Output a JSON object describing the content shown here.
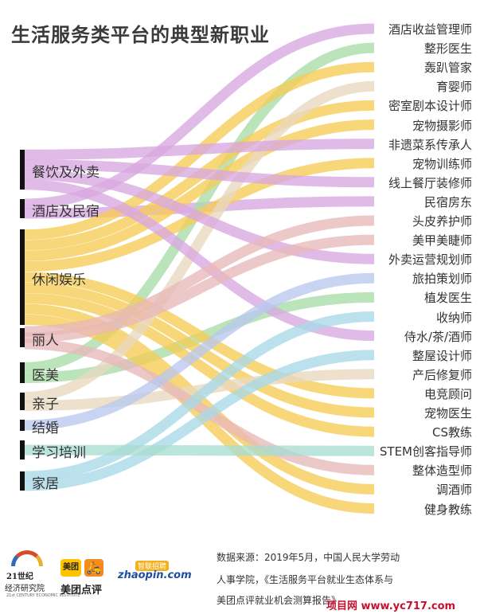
{
  "title": "生活服务类平台的典型新职业",
  "sources": [
    {
      "label": "餐饮及外卖"
    },
    {
      "label": "酒店及民宿"
    },
    {
      "label": "休闲娱乐"
    },
    {
      "label": "丽人"
    },
    {
      "label": "医美"
    },
    {
      "label": "亲子"
    },
    {
      "label": "结婚"
    },
    {
      "label": "学习培训"
    },
    {
      "label": "家居"
    }
  ],
  "targets": [
    {
      "label": "酒店收益管理师"
    },
    {
      "label": "整形医生"
    },
    {
      "label": "轰趴管家"
    },
    {
      "label": "育婴师"
    },
    {
      "label": "密室剧本设计师"
    },
    {
      "label": "宠物摄影师"
    },
    {
      "label": "非遗菜系传承人"
    },
    {
      "label": "宠物训练师"
    },
    {
      "label": "线上餐厅装修师"
    },
    {
      "label": "民宿房东"
    },
    {
      "label": "头皮养护师"
    },
    {
      "label": "美甲美睫师"
    },
    {
      "label": "外卖运营规划师"
    },
    {
      "label": "旅拍策划师"
    },
    {
      "label": "植发医生"
    },
    {
      "label": "收纳师"
    },
    {
      "label": "侍水/茶/酒师"
    },
    {
      "label": "整屋设计师"
    },
    {
      "label": "产后修复师"
    },
    {
      "label": "电竞顾问"
    },
    {
      "label": "宠物医生"
    },
    {
      "label": "CS教练"
    },
    {
      "label": "STEM创客指导师"
    },
    {
      "label": "整体造型师"
    },
    {
      "label": "调酒师"
    },
    {
      "label": "健身教练"
    }
  ],
  "links": [
    {
      "source": "酒店及民宿",
      "target": "酒店收益管理师",
      "color": "#d9a8e0"
    },
    {
      "source": "医美",
      "target": "整形医生",
      "color": "#a8dca8"
    },
    {
      "source": "休闲娱乐",
      "target": "轰趴管家",
      "color": "#f6cc55"
    },
    {
      "source": "亲子",
      "target": "育婴师",
      "color": "#e8d8c0"
    },
    {
      "source": "休闲娱乐",
      "target": "密室剧本设计师",
      "color": "#f6cc55"
    },
    {
      "source": "休闲娱乐",
      "target": "宠物摄影师",
      "color": "#f6cc55"
    },
    {
      "source": "餐饮及外卖",
      "target": "非遗菜系传承人",
      "color": "#d9a8e0"
    },
    {
      "source": "休闲娱乐",
      "target": "宠物训练师",
      "color": "#f6cc55"
    },
    {
      "source": "餐饮及外卖",
      "target": "线上餐厅装修师",
      "color": "#d9a8e0"
    },
    {
      "source": "酒店及民宿",
      "target": "民宿房东",
      "color": "#d9a8e0"
    },
    {
      "source": "丽人",
      "target": "头皮养护师",
      "color": "#e8b8b8"
    },
    {
      "source": "丽人",
      "target": "美甲美睫师",
      "color": "#e8b8b8"
    },
    {
      "source": "餐饮及外卖",
      "target": "外卖运营规划师",
      "color": "#d9a8e0"
    },
    {
      "source": "结婚",
      "target": "旅拍策划师",
      "color": "#b8c8ee"
    },
    {
      "source": "医美",
      "target": "植发医生",
      "color": "#a8dca8"
    },
    {
      "source": "家居",
      "target": "收纳师",
      "color": "#a8d8e8"
    },
    {
      "source": "餐饮及外卖",
      "target": "侍水/茶/酒师",
      "color": "#d9a8e0"
    },
    {
      "source": "家居",
      "target": "整屋设计师",
      "color": "#a8d8e8"
    },
    {
      "source": "亲子",
      "target": "产后修复师",
      "color": "#e8d8c0"
    },
    {
      "source": "休闲娱乐",
      "target": "电竞顾问",
      "color": "#f6cc55"
    },
    {
      "source": "休闲娱乐",
      "target": "宠物医生",
      "color": "#f6cc55"
    },
    {
      "source": "休闲娱乐",
      "target": "CS教练",
      "color": "#f6cc55"
    },
    {
      "source": "学习培训",
      "target": "STEM创客指导师",
      "color": "#a8dcd0"
    },
    {
      "source": "丽人",
      "target": "整体造型师",
      "color": "#e8b8b8"
    },
    {
      "source": "休闲娱乐",
      "target": "调酒师",
      "color": "#f6cc55"
    },
    {
      "source": "休闲娱乐",
      "target": "健身教练",
      "color": "#f6cc55"
    }
  ],
  "footer": {
    "logo_21_line1": "21世纪",
    "logo_21_line2": "经济研究院",
    "logo_21_line3": "21st CENTURY ECONOMIC INSTITUTE",
    "meituan_badge": "美团",
    "meituan_icon": "🛵",
    "meituan_text": "美团点评",
    "zhaopin_cap": "智联招聘",
    "zhaopin_text": "zhaopin.com",
    "source_line1": "数据来源：2019年5月，中国人民大学劳动",
    "source_line2": "人事学院，《生活服务平台就业生态体系与",
    "source_line3": "美团点评就业机会测算报告》"
  },
  "watermark": "项目网 www.yc717.com"
}
